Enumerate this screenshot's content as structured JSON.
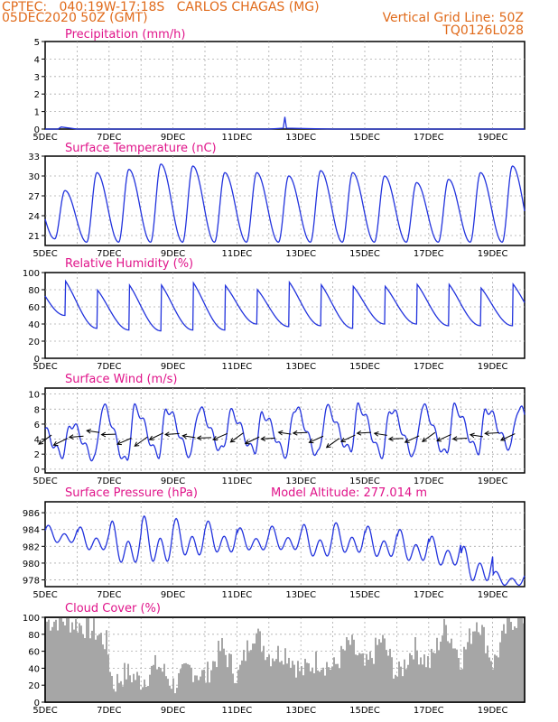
{
  "header": {
    "line1": "CPTEC:   040:19W-17:18S   CARLOS CHAGAS (MG)",
    "line2": "05DEC2020 50Z (GMT)",
    "grid_note": "Vertical Grid Line: 50Z",
    "code": "TQ0126L028"
  },
  "colors": {
    "series": "#2233dd",
    "title": "#e0148a",
    "header": "#e06a1a",
    "cloud": "#a6a6a6",
    "grid": "#aaaaaa"
  },
  "x_ticks": [
    "5DEC",
    "7DEC",
    "9DEC",
    "11DEC",
    "13DEC",
    "15DEC",
    "17DEC",
    "19DEC"
  ],
  "x_day_start": 5,
  "x_day_end": 20,
  "chart_data": [
    {
      "id": "precip",
      "type": "line",
      "title": "Precipitation (mm/h)",
      "ylim": [
        0,
        5
      ],
      "yticks": [
        0,
        1,
        2,
        3,
        4,
        5
      ],
      "x": [
        5.0,
        5.4,
        5.5,
        6.0,
        8.0,
        10.0,
        12.0,
        12.45,
        12.5,
        12.55,
        14.0,
        16.0,
        18.0,
        20.0
      ],
      "values": [
        0.0,
        0.0,
        0.12,
        0.0,
        0.0,
        0.0,
        0.0,
        0.05,
        0.7,
        0.05,
        0.0,
        0.0,
        0.0,
        0.0
      ]
    },
    {
      "id": "temp",
      "type": "line",
      "title": "Surface Temperature (nC)",
      "ylim": [
        19.5,
        33
      ],
      "yticks": [
        21,
        24,
        27,
        30,
        33
      ],
      "min": [
        20.5,
        20.0,
        20.0,
        20.0,
        20.0,
        20.0,
        20.0,
        20.0,
        20.0,
        20.0,
        20.0,
        20.0,
        20.0,
        20.0,
        20.0,
        20.0
      ],
      "max": [
        27.8,
        30.5,
        31.0,
        31.8,
        31.5,
        30.5,
        30.5,
        30.0,
        30.8,
        30.5,
        30.0,
        29.0,
        29.5,
        30.5,
        31.5
      ]
    },
    {
      "id": "rh",
      "type": "line",
      "title": "Relative Humidity (%)",
      "ylim": [
        0,
        100
      ],
      "yticks": [
        0,
        20,
        40,
        60,
        80,
        100
      ],
      "max": [
        100,
        88,
        95,
        95,
        98,
        93,
        88,
        98,
        95,
        92,
        92,
        95,
        95,
        90,
        95,
        92
      ],
      "min": [
        50,
        35,
        33,
        32,
        33,
        33,
        40,
        37,
        38,
        35,
        40,
        40,
        38,
        38,
        38,
        40
      ]
    },
    {
      "id": "wind",
      "type": "line",
      "title": "Surface Wind (m/s)",
      "ylim": [
        -0.5,
        10.8
      ],
      "yticks": [
        0,
        2,
        4,
        6,
        8,
        10
      ],
      "max": [
        6,
        8.3,
        8.1,
        8.0,
        8.0,
        7.5,
        7.3,
        8.2,
        8.1,
        8.3,
        8.0,
        8.3,
        8.2,
        8.0,
        8.1
      ],
      "min": [
        2.0,
        1.5,
        1.0,
        2.0,
        2.0,
        2.5,
        2.5,
        2.0,
        2.0,
        2.5,
        2.0,
        2.0,
        2.0,
        2.5,
        3.0
      ]
    },
    {
      "id": "pres",
      "type": "line",
      "title": "Surface Pressure (hPa)",
      "subtitle": "Model Altitude: 277.014 m",
      "ylim": [
        977.2,
        987.3
      ],
      "yticks": [
        978,
        980,
        982,
        984,
        986
      ],
      "high": [
        984.5,
        984.3,
        985.0,
        985.6,
        985.3,
        985.0,
        984.2,
        984.4,
        984.6,
        984.8,
        984.4,
        984.0,
        983.2,
        982.0,
        979.0
      ],
      "low": [
        982.0,
        981.0,
        979.0,
        979.0,
        980.0,
        980.5,
        981.0,
        981.0,
        980.0,
        980.5,
        980.0,
        979.5,
        979.0,
        977.0,
        977.0
      ]
    },
    {
      "id": "cloud",
      "type": "area",
      "title": "Cloud Cover (%)",
      "ylim": [
        0,
        100
      ],
      "yticks": [
        0,
        20,
        40,
        60,
        80,
        100
      ],
      "x": [
        5.0,
        5.5,
        6.0,
        6.5,
        6.9,
        7.1,
        7.5,
        8.0,
        8.5,
        9.0,
        9.5,
        10.0,
        10.5,
        11.0,
        11.5,
        12.0,
        12.5,
        13.0,
        13.5,
        14.0,
        14.5,
        15.0,
        15.5,
        16.0,
        16.5,
        17.0,
        17.5,
        18.0,
        18.5,
        19.0,
        19.5,
        20.0
      ],
      "values": [
        95,
        98,
        92,
        85,
        70,
        20,
        35,
        25,
        45,
        20,
        40,
        30,
        65,
        30,
        85,
        55,
        60,
        35,
        50,
        40,
        70,
        40,
        75,
        30,
        65,
        45,
        90,
        50,
        100,
        45,
        97,
        100
      ]
    }
  ]
}
